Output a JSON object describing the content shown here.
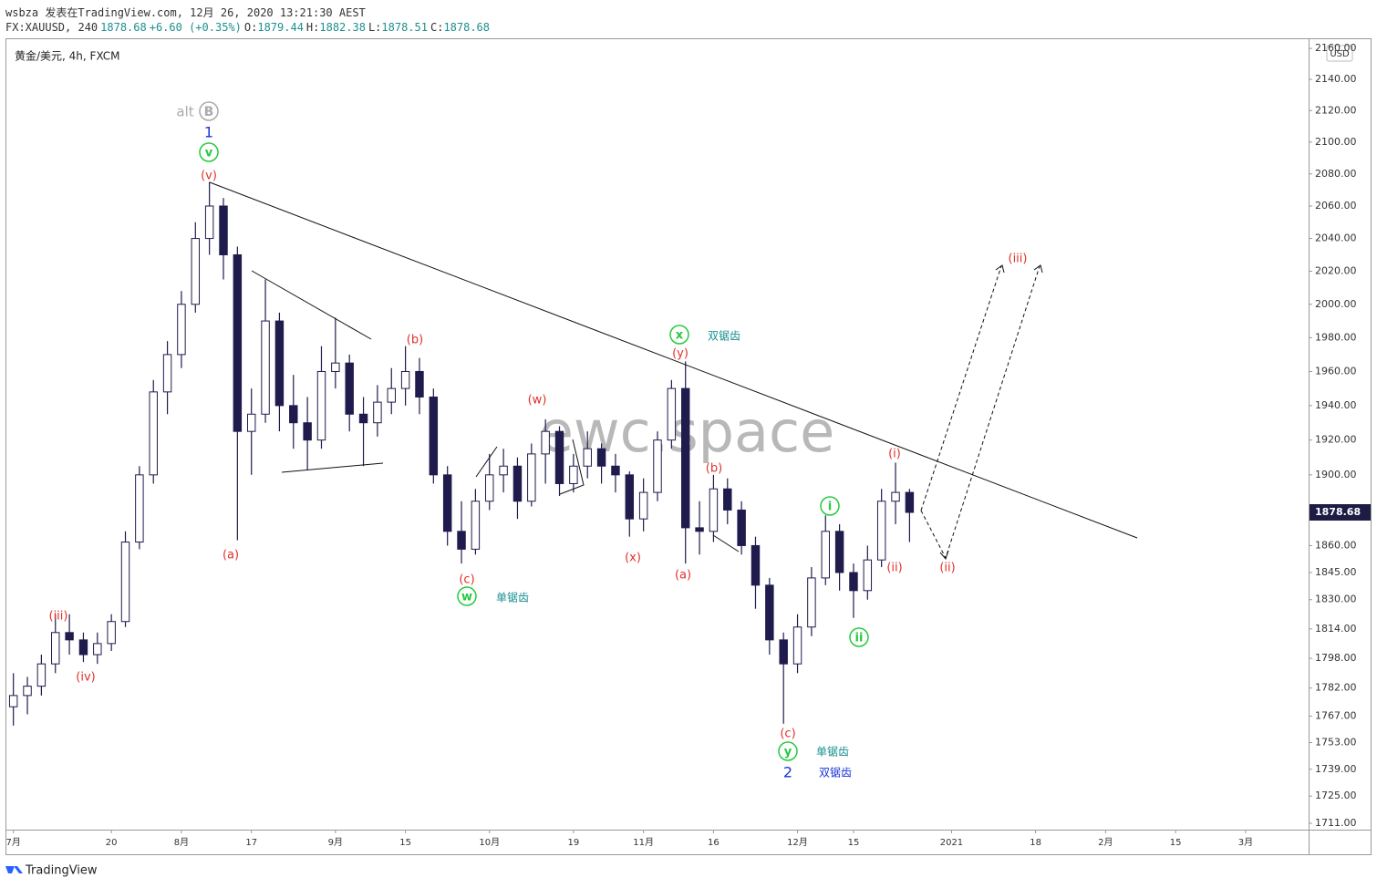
{
  "header": {
    "line1": "wsbza 发表在TradingView.com, 12月 26, 2020 13:21:30 AEST",
    "symbol": "FX:XAUUSD, 240",
    "last": "1878.68",
    "change": "+6.60 (+0.35%)",
    "ohlc": [
      "O:",
      "1879.44",
      "H:",
      "1882.38",
      "L:",
      "1878.51",
      "C:",
      "1878.68"
    ]
  },
  "footer": "TradingView",
  "watermark": "ewc.space",
  "chart_data": {
    "type": "candlestick",
    "title": "黄金/美元, 4h, FXCM",
    "currency": "USD",
    "color": "#1f1b4d",
    "log_scale": true,
    "categories": [
      "7月",
      null,
      null,
      null,
      null,
      null,
      null,
      "20",
      null,
      null,
      null,
      null,
      "8月",
      null,
      null,
      null,
      null,
      "17",
      null,
      null,
      null,
      null,
      null,
      "9月",
      null,
      null,
      null,
      null,
      "15",
      null,
      null,
      null,
      null,
      null,
      "10月",
      null,
      null,
      null,
      null,
      null,
      "19",
      null,
      null,
      null,
      null,
      "11月",
      null,
      null,
      null,
      null,
      "16",
      null,
      null,
      null,
      null,
      null,
      "12月",
      null,
      null,
      null,
      "15",
      null,
      null,
      null,
      null,
      null,
      null,
      "2021",
      null,
      null,
      null,
      null,
      null,
      "18",
      null,
      null,
      null,
      null,
      "2月",
      null,
      null,
      null,
      null,
      "15",
      null,
      null,
      null,
      null,
      "3月",
      null,
      null,
      null,
      null
    ],
    "open": [
      1772,
      1778,
      1783,
      1795,
      1812,
      1808,
      1800,
      1806,
      1818,
      1862,
      1900,
      1948,
      1970,
      2000,
      2040,
      2060,
      2030,
      1925,
      1935,
      1990,
      1940,
      1930,
      1920,
      1960,
      1965,
      1935,
      1930,
      1942,
      1950,
      1960,
      1945,
      1900,
      1868,
      1858,
      1885,
      1900,
      1905,
      1885,
      1912,
      1925,
      1895,
      1905,
      1915,
      1905,
      1900,
      1875,
      1890,
      1920,
      1950,
      1870,
      1868,
      1892,
      1880,
      1860,
      1838,
      1808,
      1795,
      1815,
      1842,
      1868,
      1845,
      1835,
      1852,
      1885,
      1890,
      null,
      null,
      null,
      null,
      null,
      null,
      null,
      null,
      null,
      null,
      null,
      null,
      null,
      null,
      null,
      null,
      null,
      null,
      null,
      null,
      null,
      null,
      null,
      null,
      null,
      null,
      null,
      null
    ],
    "high": [
      1790,
      1788,
      1800,
      1822,
      1822,
      1812,
      1812,
      1822,
      1868,
      1905,
      1955,
      1978,
      2008,
      2050,
      2075,
      2065,
      2035,
      1950,
      2015,
      1995,
      1958,
      1945,
      1975,
      1992,
      1970,
      1945,
      1952,
      1962,
      1975,
      1968,
      1950,
      1905,
      1885,
      1892,
      1912,
      1915,
      1910,
      1918,
      1932,
      1928,
      1912,
      1925,
      1918,
      1912,
      1902,
      1898,
      1925,
      1955,
      1966,
      1885,
      1900,
      1898,
      1885,
      1865,
      1842,
      1812,
      1822,
      1848,
      1877,
      1872,
      1850,
      1860,
      1892,
      1907,
      1892,
      null,
      null,
      null,
      null,
      null,
      null,
      null,
      null,
      null,
      null,
      null,
      null,
      null,
      null,
      null,
      null,
      null,
      null,
      null,
      null,
      null,
      null,
      null,
      null,
      null,
      null,
      null,
      null
    ],
    "low": [
      1762,
      1768,
      1778,
      1790,
      1800,
      1796,
      1795,
      1802,
      1815,
      1858,
      1895,
      1935,
      1962,
      1995,
      2030,
      2015,
      1863,
      1900,
      1930,
      1925,
      1915,
      1903,
      1915,
      1950,
      1925,
      1905,
      1922,
      1935,
      1940,
      1935,
      1895,
      1860,
      1850,
      1855,
      1880,
      1890,
      1875,
      1882,
      1895,
      1888,
      1890,
      1898,
      1895,
      1890,
      1865,
      1868,
      1885,
      1915,
      1850,
      1855,
      1862,
      1872,
      1855,
      1825,
      1800,
      1763,
      1790,
      1810,
      1838,
      1835,
      1820,
      1830,
      1848,
      1872,
      1862,
      null,
      null,
      null,
      null,
      null,
      null,
      null,
      null,
      null,
      null,
      null,
      null,
      null,
      null,
      null,
      null,
      null,
      null,
      null,
      null,
      null,
      null,
      null,
      null,
      null,
      null,
      null,
      null
    ],
    "close": [
      1778,
      1783,
      1795,
      1812,
      1808,
      1800,
      1806,
      1818,
      1862,
      1900,
      1948,
      1970,
      2000,
      2040,
      2060,
      2030,
      1925,
      1935,
      1990,
      1940,
      1930,
      1920,
      1960,
      1965,
      1935,
      1930,
      1942,
      1950,
      1960,
      1945,
      1900,
      1868,
      1858,
      1885,
      1900,
      1905,
      1885,
      1912,
      1925,
      1895,
      1905,
      1915,
      1905,
      1900,
      1875,
      1890,
      1920,
      1950,
      1870,
      1868,
      1892,
      1880,
      1860,
      1838,
      1808,
      1795,
      1815,
      1842,
      1868,
      1845,
      1835,
      1852,
      1885,
      1890,
      1878.68,
      null,
      null,
      null,
      null,
      null,
      null,
      null,
      null,
      null,
      null,
      null,
      null,
      null,
      null,
      null,
      null,
      null,
      null,
      null,
      null,
      null,
      null,
      null,
      null,
      null,
      null,
      null,
      null
    ],
    "last_price": 1878.68,
    "ylim": [
      1707.7,
      2166
    ],
    "yticks": [
      {
        "value": 2160,
        "label": "2160.00"
      },
      {
        "value": 2140,
        "label": "2140.00"
      },
      {
        "value": 2120,
        "label": "2120.00"
      },
      {
        "value": 2100,
        "label": "2100.00"
      },
      {
        "value": 2080,
        "label": "2080.00"
      },
      {
        "value": 2060,
        "label": "2060.00"
      },
      {
        "value": 2040,
        "label": "2040.00"
      },
      {
        "value": 2020,
        "label": "2020.00"
      },
      {
        "value": 2000,
        "label": "2000.00"
      },
      {
        "value": 1980,
        "label": "1980.00"
      },
      {
        "value": 1960,
        "label": "1960.00"
      },
      {
        "value": 1940,
        "label": "1940.00"
      },
      {
        "value": 1920,
        "label": "1920.00"
      },
      {
        "value": 1900,
        "label": "1900.00"
      },
      {
        "value": 1860,
        "label": "1860.00"
      },
      {
        "value": 1845,
        "label": "1845.00"
      },
      {
        "value": 1830,
        "label": "1830.00"
      },
      {
        "value": 1814,
        "label": "1814.00"
      },
      {
        "value": 1798,
        "label": "1798.00"
      },
      {
        "value": 1782,
        "label": "1782.00"
      },
      {
        "value": 1767,
        "label": "1767.00"
      },
      {
        "value": 1753,
        "label": "1753.00"
      },
      {
        "value": 1739,
        "label": "1739.00"
      },
      {
        "value": 1725,
        "label": "1725.00"
      },
      {
        "value": 1711,
        "label": "1711.00"
      }
    ],
    "annotations": [
      "alt",
      "B",
      "1",
      "v",
      "(v)",
      "(iii)",
      "(iv)",
      "(a)",
      "(b)",
      "(c)",
      "w",
      "单锯齿",
      "(w)",
      "x",
      "双锯齿",
      "(y)",
      "(x)",
      "(a)",
      "(b)",
      "(c)",
      "y",
      "单锯齿",
      "2",
      "双锯齿",
      "i",
      "ii",
      "(i)",
      "(ii)",
      "(ii)",
      "(iii)"
    ]
  }
}
